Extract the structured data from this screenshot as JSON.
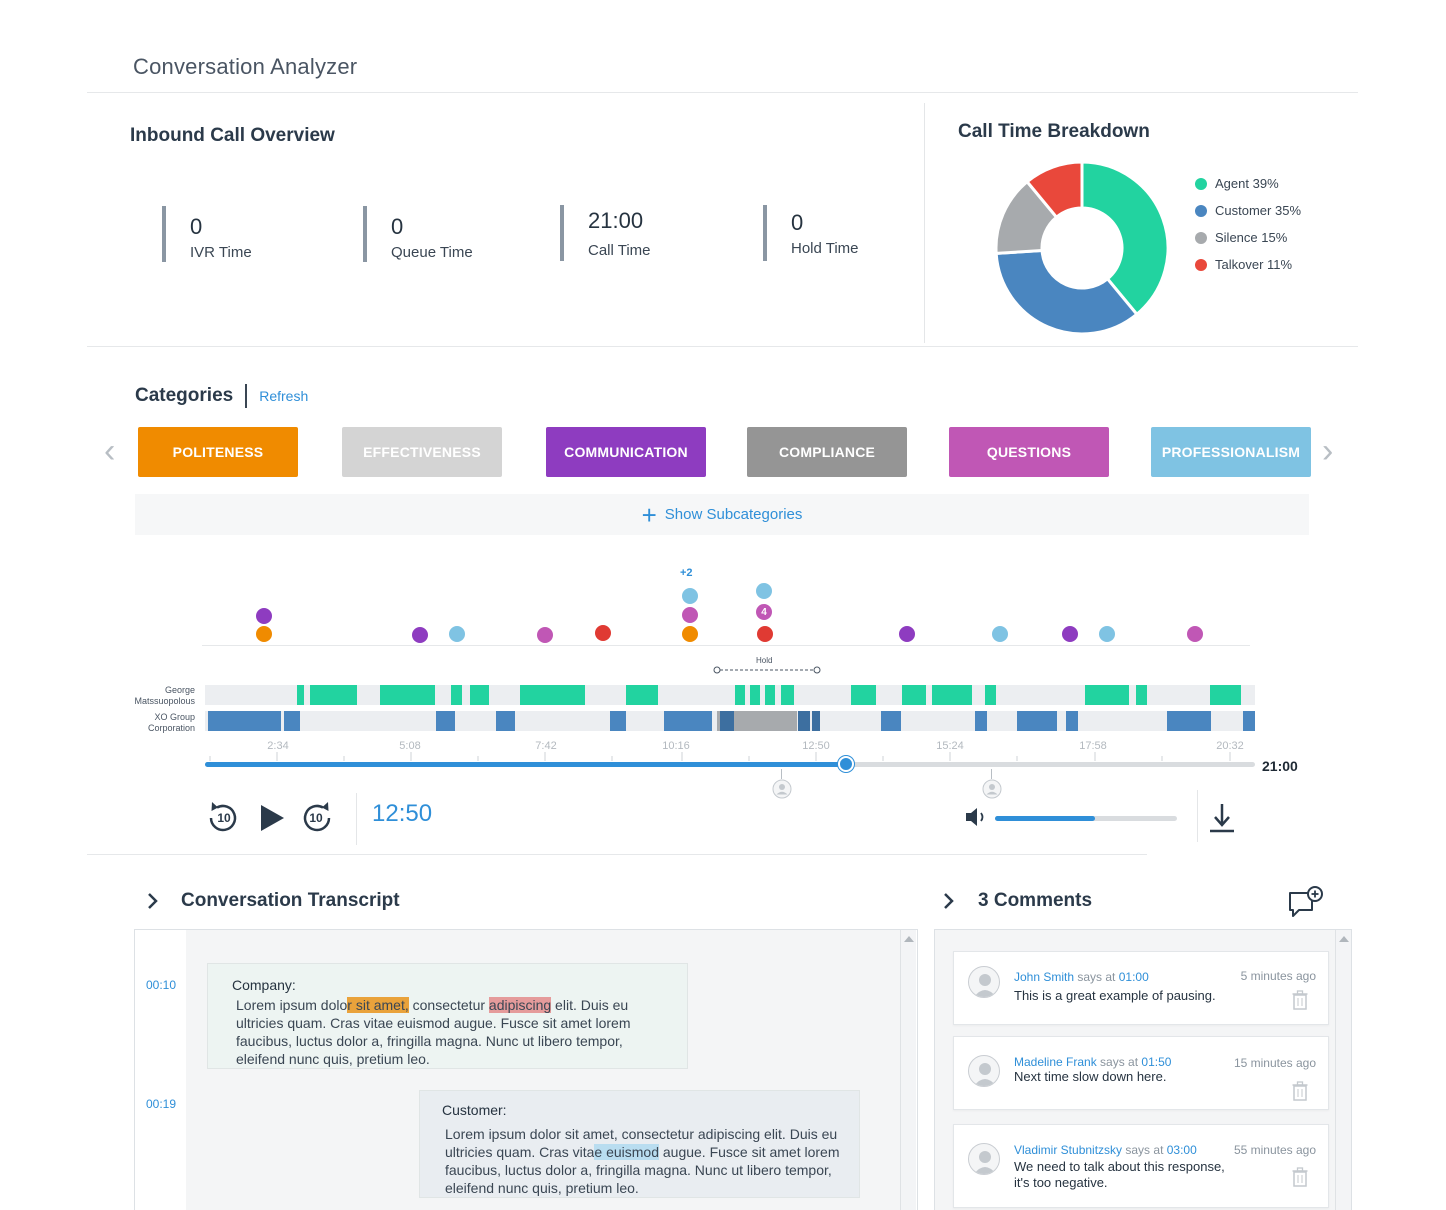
{
  "app": {
    "title": "Conversation Analyzer"
  },
  "overview": {
    "title": "Inbound Call Overview",
    "stats": [
      {
        "value": "0",
        "label": "IVR Time"
      },
      {
        "value": "0",
        "label": "Queue Time"
      },
      {
        "value": "21:00",
        "label": "Call Time"
      },
      {
        "value": "0",
        "label": "Hold Time"
      }
    ]
  },
  "breakdown": {
    "title": "Call Time Breakdown",
    "legend": [
      {
        "name": "Agent",
        "pct": "39%",
        "color": "#22d3a0"
      },
      {
        "name": "Customer",
        "pct": "35%",
        "color": "#4a86c0"
      },
      {
        "name": "Silence",
        "pct": "15%",
        "color": "#a7aaad"
      },
      {
        "name": "Talkover",
        "pct": "11%",
        "color": "#e9483b"
      }
    ]
  },
  "chart_data": {
    "type": "pie",
    "title": "Call Time Breakdown",
    "categories": [
      "Agent",
      "Customer",
      "Silence",
      "Talkover"
    ],
    "values": [
      39,
      35,
      15,
      11
    ],
    "legend": "right"
  },
  "categories": {
    "title": "Categories",
    "refresh_label": "Refresh",
    "items": [
      {
        "label": "POLITENESS",
        "color": "#f08b00"
      },
      {
        "label": "EFFECTIVENESS",
        "color": "#d4d4d4"
      },
      {
        "label": "COMMUNICATION",
        "color": "#8e3cc0"
      },
      {
        "label": "COMPLIANCE",
        "color": "#959595"
      },
      {
        "label": "QUESTIONS",
        "color": "#c057b5"
      },
      {
        "label": "PROFESSIONALISM",
        "color": "#7fc3e3"
      }
    ],
    "show_subcategories_label": "Show Subcategories"
  },
  "timeline": {
    "plus_badge": "+2",
    "count_badge": "4",
    "hold_label": "Hold",
    "tracks": [
      "George Matssuopolous",
      "XO Group Corporation"
    ],
    "ticks": [
      "2:34",
      "5:08",
      "7:42",
      "10:16",
      "12:50",
      "15:24",
      "17:58",
      "20:32"
    ],
    "total": "21:00",
    "progress": 0.61
  },
  "player": {
    "current_time": "12:50",
    "rewind_label": "10",
    "forward_label": "10",
    "volume": 0.55
  },
  "transcript": {
    "title": "Conversation Transcript",
    "entries": [
      {
        "time": "00:10",
        "speaker": "Company:",
        "t1": "Lorem ipsum dolo",
        "h1": "r sit amet,",
        "t2": " consectetur ",
        "h2": "adipiscing",
        "t3": " elit. Duis eu ultricies quam. Cras vitae euismod augue. Fusce sit amet lorem faucibus, luctus dolor a, fringilla magna. Nunc ut libero tempor, eleifend nunc quis, pretium leo."
      },
      {
        "time": "00:19",
        "speaker": "Customer:",
        "t1": "Lorem ipsum dolor sit amet, consectetur adipiscing elit. Duis eu ultricies quam. Cras vita",
        "h1": "e euismod",
        "t2": " augue. Fusce sit amet lorem faucibus, luctus dolor a, fringilla magna. Nunc ut libero tempor, eleifend nunc quis, pretium leo."
      }
    ]
  },
  "comments": {
    "title": "3 Comments",
    "items": [
      {
        "author": "John Smith",
        "says": " says at ",
        "time": "01:00",
        "ago": "5 minutes ago",
        "text": "This is a great example of pausing."
      },
      {
        "author": "Madeline Frank",
        "says": " says at ",
        "time": "01:50",
        "ago": "15 minutes ago",
        "text": "Next time slow down here."
      },
      {
        "author": "Vladimir Stubnitzsky",
        "says": " says at ",
        "time": "03:00",
        "ago": "55 minutes ago",
        "text": "We need to talk about this response, it's too negative."
      }
    ]
  }
}
